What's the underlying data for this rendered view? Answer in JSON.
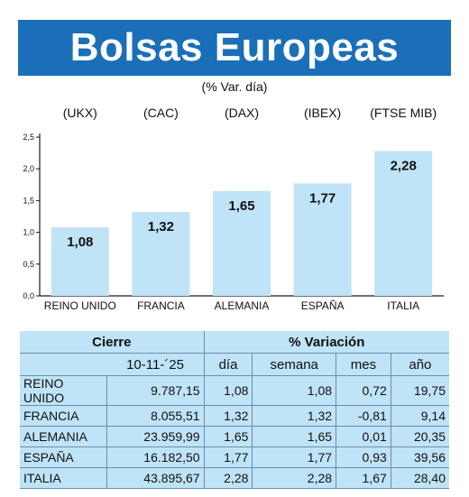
{
  "header": {
    "title": "Bolsas Europeas",
    "subtitle": "(% Var. día)"
  },
  "chart_data": {
    "type": "bar",
    "categories": [
      "REINO UNIDO",
      "FRANCIA",
      "ALEMANIA",
      "ESPAÑA",
      "ITALIA"
    ],
    "index_labels": [
      "(UKX)",
      "(CAC)",
      "(DAX)",
      "(IBEX)",
      "(FTSE MIB)"
    ],
    "values": [
      1.08,
      1.32,
      1.65,
      1.77,
      2.28
    ],
    "value_labels": [
      "1,08",
      "1,32",
      "1,65",
      "1,77",
      "2,28"
    ],
    "yticks": [
      "0,0",
      "0,5",
      "1,0",
      "1,5",
      "2,0",
      "2,5"
    ],
    "ylim": [
      0,
      2.5
    ],
    "bar_color": "#bfe3f7",
    "axis_color": "#1a1a1a"
  },
  "table": {
    "header1": {
      "cierre": "Cierre",
      "variacion": "% Variación"
    },
    "header2": {
      "date": "10-11-´25",
      "dia": "día",
      "semana": "semana",
      "mes": "mes",
      "ano": "año"
    },
    "rows": [
      {
        "name": "REINO UNIDO",
        "cierre": "9.787,15",
        "dia": "1,08",
        "semana": "1,08",
        "mes": "0,72",
        "ano": "19,75"
      },
      {
        "name": "FRANCIA",
        "cierre": "8.055,51",
        "dia": "1,32",
        "semana": "1,32",
        "mes": "-0,81",
        "ano": "9,14"
      },
      {
        "name": "ALEMANIA",
        "cierre": "23.959,99",
        "dia": "1,65",
        "semana": "1,65",
        "mes": "0,01",
        "ano": "20,35"
      },
      {
        "name": "ESPAÑA",
        "cierre": "16.182,50",
        "dia": "1,77",
        "semana": "1,77",
        "mes": "0,93",
        "ano": "39,56"
      },
      {
        "name": "ITALIA",
        "cierre": "43.895,67",
        "dia": "2,28",
        "semana": "2,28",
        "mes": "1,67",
        "ano": "28,40"
      }
    ],
    "colors": {
      "background": "#bfe3f7",
      "border": "#6c8fa8"
    }
  }
}
